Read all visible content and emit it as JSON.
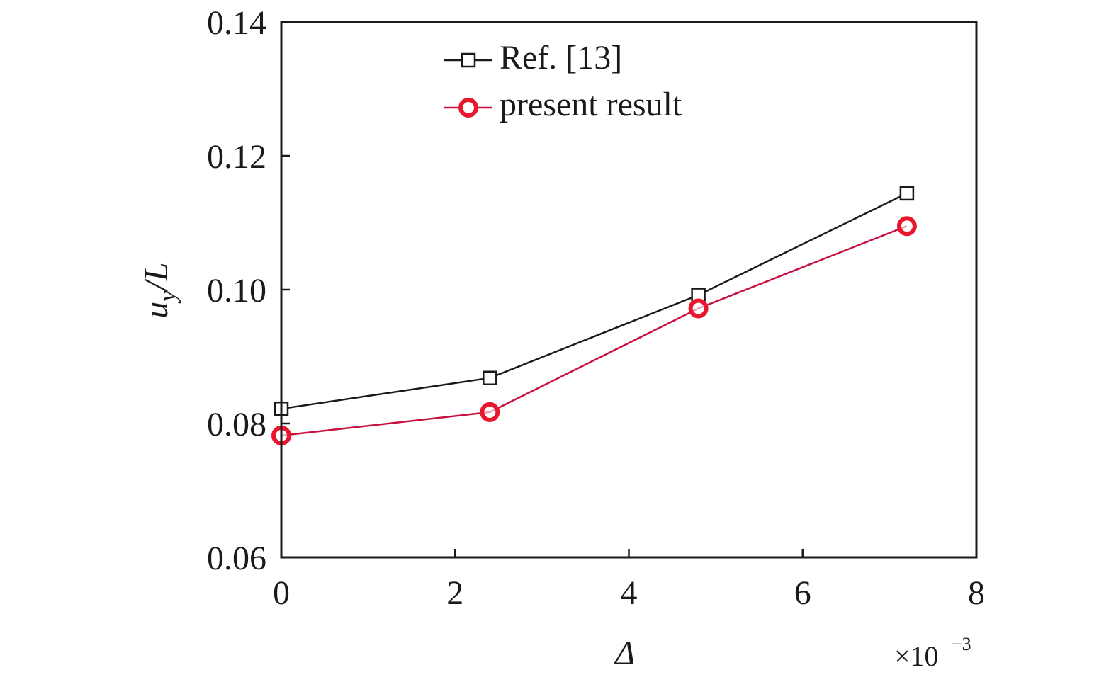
{
  "chart_data": {
    "type": "line",
    "xlabel": "Δ",
    "ylabel_main": "u",
    "ylabel_sub": "y",
    "ylabel_tail": "/L",
    "x_multiplier_base": "×10",
    "x_multiplier_exp": "−3",
    "xlim": [
      0,
      8
    ],
    "ylim": [
      0.06,
      0.14
    ],
    "xticks": [
      0,
      2,
      4,
      6,
      8
    ],
    "xtick_labels": [
      "0",
      "2",
      "4",
      "6",
      "8"
    ],
    "yticks": [
      0.06,
      0.08,
      0.1,
      0.12,
      0.14
    ],
    "ytick_labels": [
      "0.06",
      "0.08",
      "0.10",
      "0.12",
      "0.14"
    ],
    "grid": false,
    "legend_position": "top-center",
    "series": [
      {
        "name": "Ref. [13]",
        "x": [
          0,
          2.4,
          4.8,
          7.2
        ],
        "y": [
          0.0822,
          0.0868,
          0.0992,
          0.1144
        ],
        "color": "#1a1a1a",
        "marker": "square"
      },
      {
        "name": "present result",
        "x": [
          0,
          2.4,
          4.8,
          7.2
        ],
        "y": [
          0.0782,
          0.0817,
          0.0972,
          0.1095
        ],
        "color": "#e8172e",
        "line_color": "#c8103f",
        "marker": "circle"
      }
    ]
  }
}
